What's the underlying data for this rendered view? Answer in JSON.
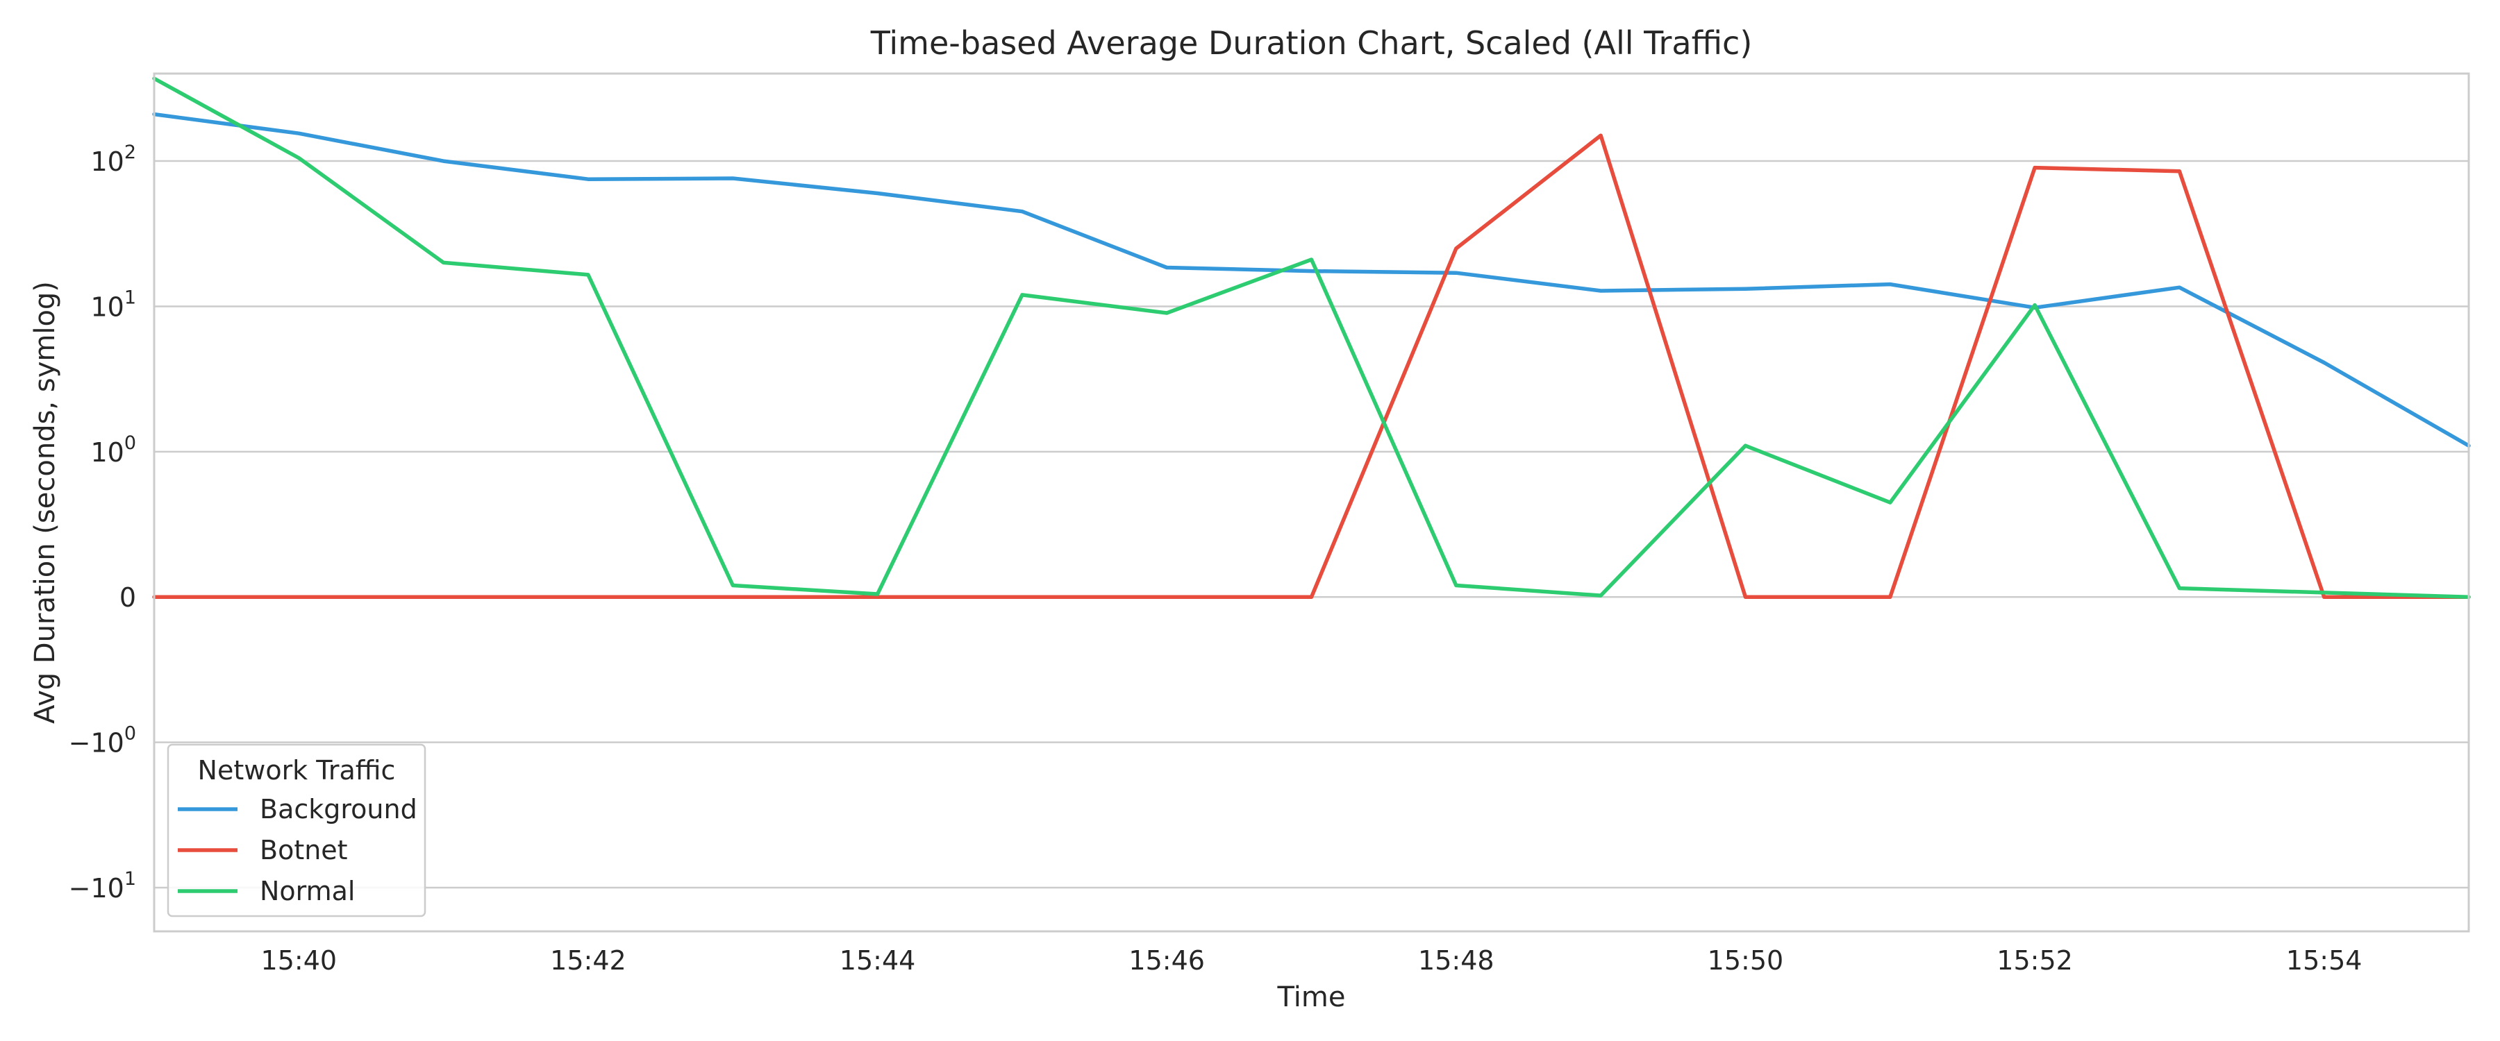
{
  "chart_data": {
    "type": "line",
    "title": "Time-based Average Duration Chart, Scaled (All Traffic)",
    "xlabel": "Time",
    "ylabel": "Avg Duration (seconds, symlog)",
    "yscale": "symlog",
    "x": [
      "15:39",
      "15:40",
      "15:41",
      "15:42",
      "15:43",
      "15:44",
      "15:45",
      "15:46",
      "15:47",
      "15:48",
      "15:49",
      "15:50",
      "15:51",
      "15:52",
      "15:53",
      "15:54",
      "15:55"
    ],
    "xlim": [
      "15:39",
      "15:55"
    ],
    "ylim": [
      -20,
      400
    ],
    "x_ticks": [
      {
        "value": "15:40",
        "label": "15:40"
      },
      {
        "value": "15:42",
        "label": "15:42"
      },
      {
        "value": "15:44",
        "label": "15:44"
      },
      {
        "value": "15:46",
        "label": "15:46"
      },
      {
        "value": "15:48",
        "label": "15:48"
      },
      {
        "value": "15:50",
        "label": "15:50"
      },
      {
        "value": "15:52",
        "label": "15:52"
      },
      {
        "value": "15:54",
        "label": "15:54"
      }
    ],
    "y_ticks": [
      {
        "value": 100,
        "base": "10",
        "exp": "2",
        "sign": ""
      },
      {
        "value": 10,
        "base": "10",
        "exp": "1",
        "sign": ""
      },
      {
        "value": 1,
        "base": "10",
        "exp": "0",
        "sign": ""
      },
      {
        "value": 0,
        "base": "0",
        "exp": "",
        "sign": ""
      },
      {
        "value": -1,
        "base": "10",
        "exp": "0",
        "sign": "−"
      },
      {
        "value": -10,
        "base": "10",
        "exp": "1",
        "sign": "−"
      }
    ],
    "grid": "y-only",
    "legend": {
      "title": "Network Traffic",
      "position": "lower-left"
    },
    "series": [
      {
        "name": "Background",
        "color": "#3498db",
        "values": [
          210,
          155,
          100,
          75,
          76,
          60,
          45,
          18.5,
          17.5,
          17,
          12.8,
          13.2,
          14.2,
          9.8,
          13.5,
          4.1,
          1.1
        ]
      },
      {
        "name": "Botnet",
        "color": "#e74c3c",
        "values": [
          0,
          0,
          0,
          0,
          0,
          0,
          0,
          0,
          0,
          25,
          150,
          0,
          0,
          90,
          85,
          0,
          0
        ]
      },
      {
        "name": "Normal",
        "color": "#2ecc71",
        "values": [
          370,
          105,
          20,
          16.5,
          0.08,
          0.02,
          12,
          9,
          21,
          0.08,
          0.01,
          1.1,
          0.65,
          10.2,
          0.06,
          0.03,
          0
        ]
      }
    ]
  }
}
